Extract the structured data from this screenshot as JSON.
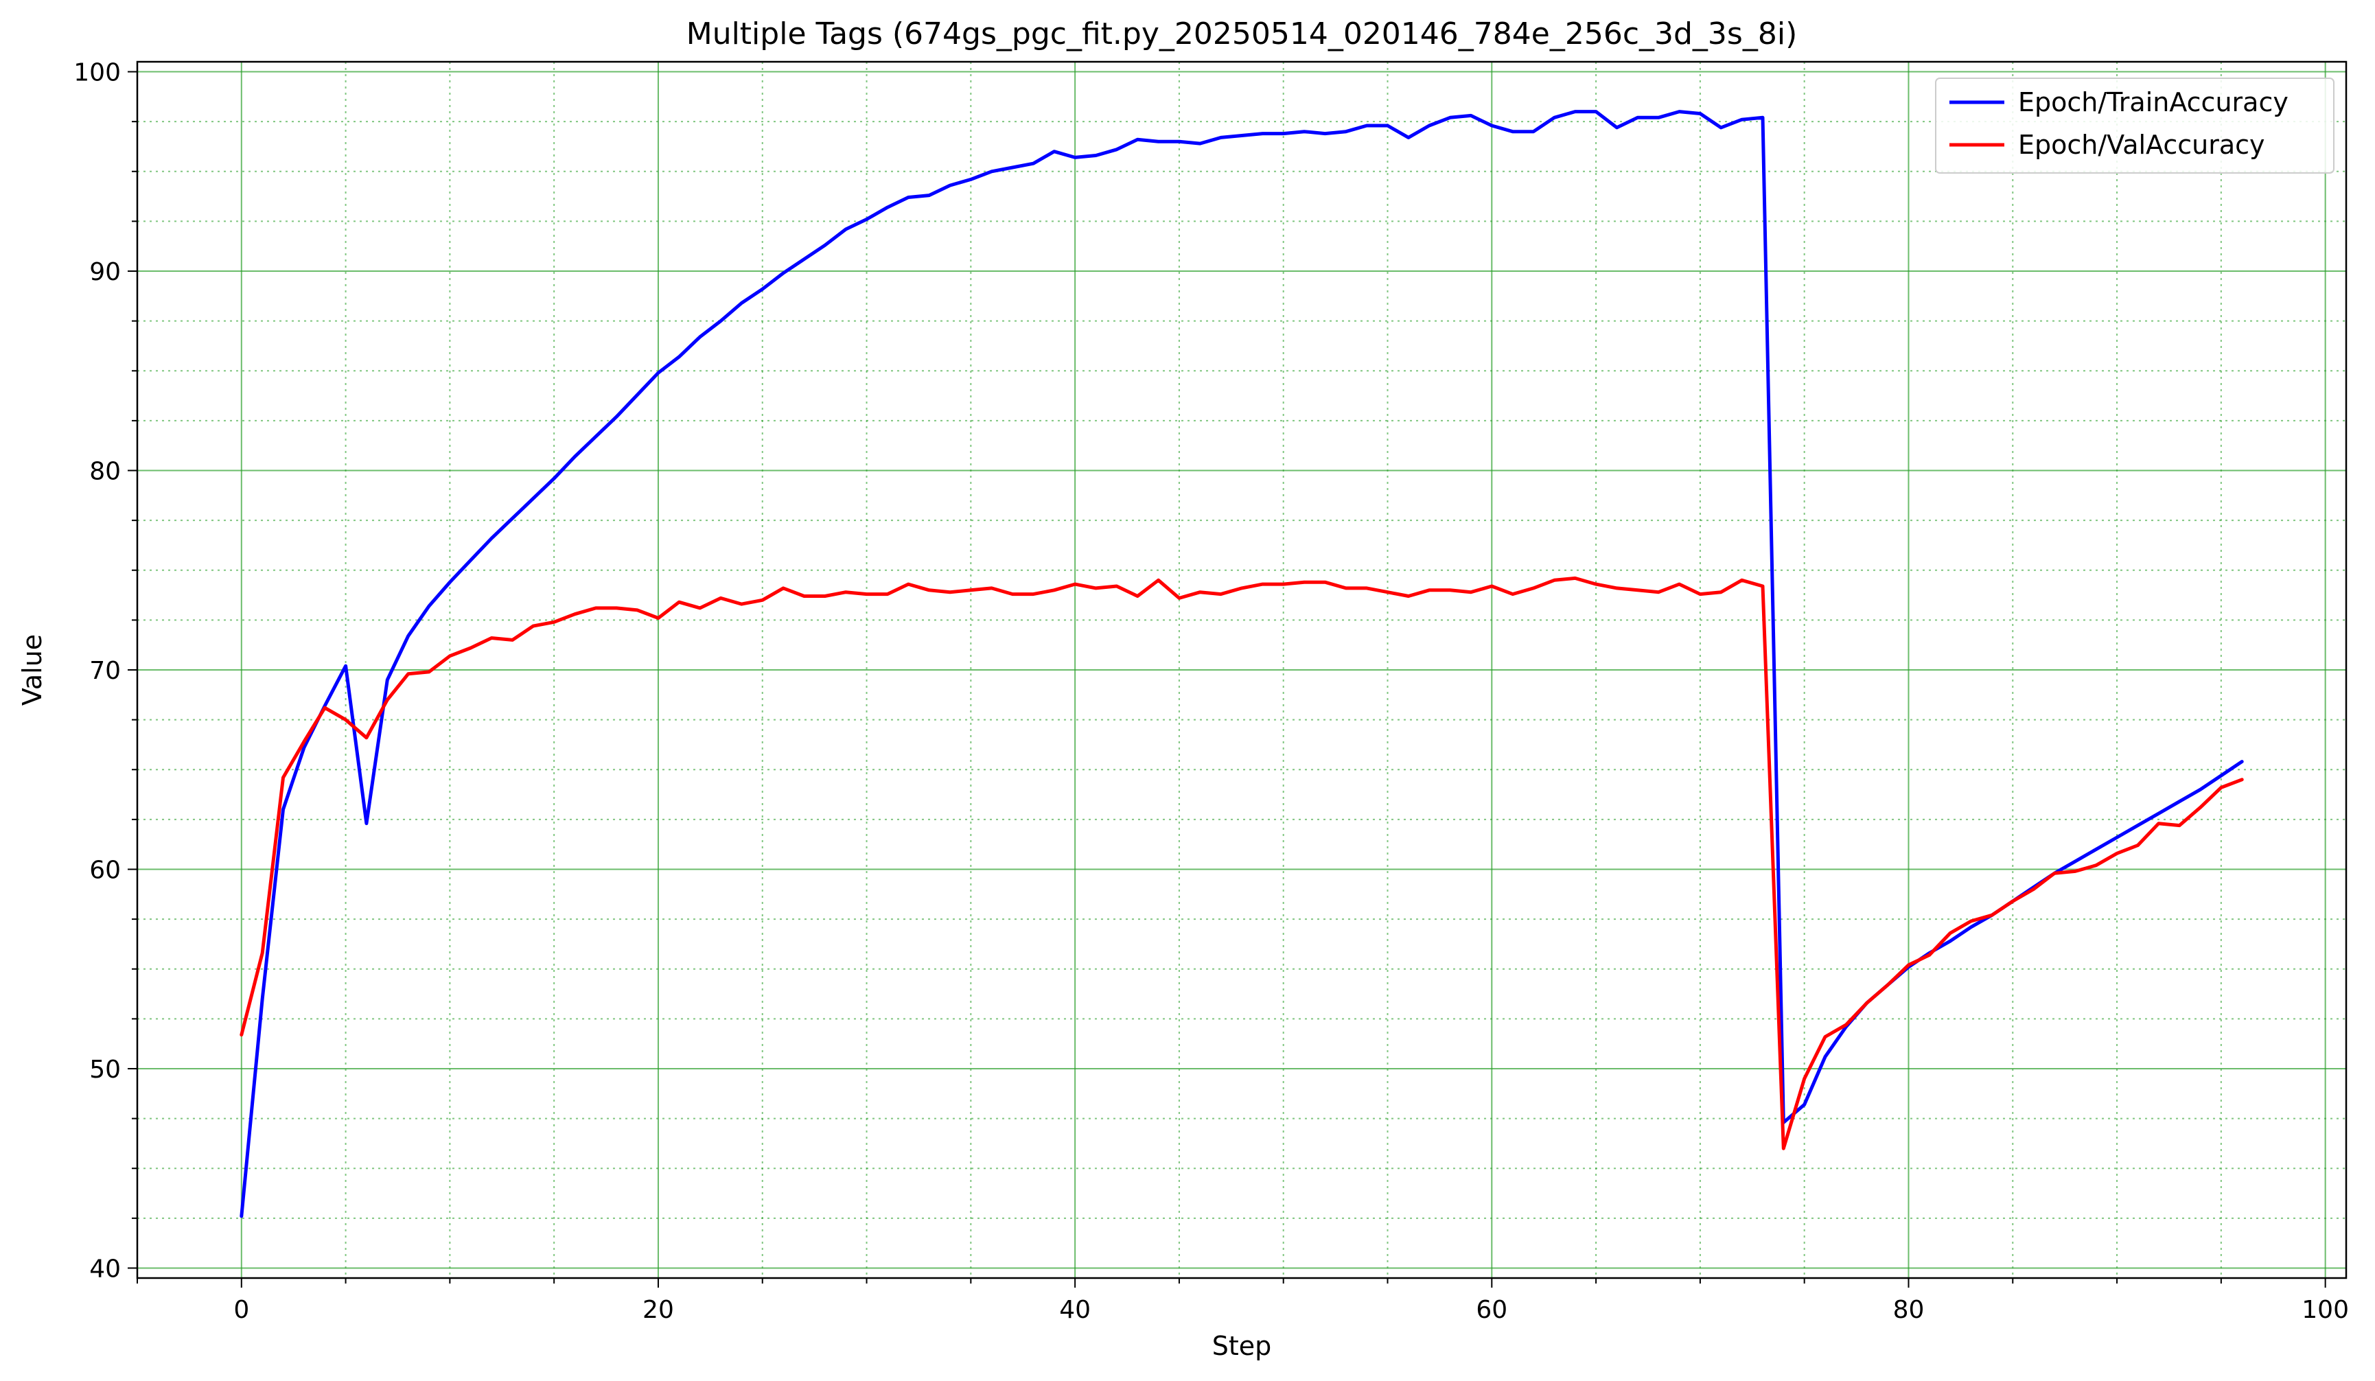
{
  "chart_data": {
    "type": "line",
    "title": "Multiple Tags (674gs_pgc_fit.py_20250514_020146_784e_256c_3d_3s_8i)",
    "xlabel": "Step",
    "ylabel": "Value",
    "xlim": [
      -5,
      101
    ],
    "ylim": [
      39.5,
      100.5
    ],
    "xticks": [
      0,
      20,
      40,
      60,
      80,
      100
    ],
    "yticks": [
      40,
      50,
      60,
      70,
      80,
      90,
      100
    ],
    "xminor_step": 5,
    "yminor_step": 2.5,
    "grid": {
      "major": true,
      "minor": true,
      "color": "#2ca02c"
    },
    "legend": {
      "position": "top-right"
    },
    "series": [
      {
        "name": "Epoch/TrainAccuracy",
        "color": "#0000ff",
        "x": [
          0,
          1,
          2,
          3,
          4,
          5,
          6,
          7,
          8,
          9,
          10,
          11,
          12,
          13,
          14,
          15,
          16,
          17,
          18,
          19,
          20,
          21,
          22,
          23,
          24,
          25,
          26,
          27,
          28,
          29,
          30,
          31,
          32,
          33,
          34,
          35,
          36,
          37,
          38,
          39,
          40,
          41,
          42,
          43,
          44,
          45,
          46,
          47,
          48,
          49,
          50,
          51,
          52,
          53,
          54,
          55,
          56,
          57,
          58,
          59,
          60,
          61,
          62,
          63,
          64,
          65,
          66,
          67,
          68,
          69,
          70,
          71,
          72,
          73,
          74,
          75,
          76,
          77,
          78,
          79,
          80,
          81,
          82,
          83,
          84,
          85,
          86,
          87,
          88,
          89,
          90,
          91,
          92,
          93,
          94,
          95,
          96
        ],
        "y": [
          42.6,
          53.5,
          63.0,
          66.1,
          68.2,
          70.2,
          62.3,
          69.5,
          71.7,
          73.2,
          74.4,
          75.5,
          76.6,
          77.6,
          78.6,
          79.6,
          80.7,
          81.7,
          82.7,
          83.8,
          84.9,
          85.7,
          86.7,
          87.5,
          88.4,
          89.1,
          89.9,
          90.6,
          91.3,
          92.1,
          92.6,
          93.2,
          93.7,
          93.8,
          94.3,
          94.6,
          95.0,
          95.2,
          95.4,
          96.0,
          95.7,
          95.8,
          96.1,
          96.6,
          96.5,
          96.5,
          96.4,
          96.7,
          96.8,
          96.9,
          96.9,
          97.0,
          96.9,
          97.0,
          97.3,
          97.3,
          96.7,
          97.3,
          97.7,
          97.8,
          97.3,
          97.0,
          97.0,
          97.7,
          98.0,
          98.0,
          97.2,
          97.7,
          97.7,
          98.0,
          97.9,
          97.2,
          97.6,
          97.7,
          47.3,
          48.2,
          50.6,
          52.1,
          53.3,
          54.2,
          55.1,
          55.8,
          56.4,
          57.1,
          57.7,
          58.4,
          59.1,
          59.8,
          60.4,
          61.0,
          61.6,
          62.2,
          62.8,
          63.4,
          64.0,
          64.7,
          65.4
        ]
      },
      {
        "name": "Epoch/ValAccuracy",
        "color": "#ff0000",
        "x": [
          0,
          1,
          2,
          3,
          4,
          5,
          6,
          7,
          8,
          9,
          10,
          11,
          12,
          13,
          14,
          15,
          16,
          17,
          18,
          19,
          20,
          21,
          22,
          23,
          24,
          25,
          26,
          27,
          28,
          29,
          30,
          31,
          32,
          33,
          34,
          35,
          36,
          37,
          38,
          39,
          40,
          41,
          42,
          43,
          44,
          45,
          46,
          47,
          48,
          49,
          50,
          51,
          52,
          53,
          54,
          55,
          56,
          57,
          58,
          59,
          60,
          61,
          62,
          63,
          64,
          65,
          66,
          67,
          68,
          69,
          70,
          71,
          72,
          73,
          74,
          75,
          76,
          77,
          78,
          79,
          80,
          81,
          82,
          83,
          84,
          85,
          86,
          87,
          88,
          89,
          90,
          91,
          92,
          93,
          94,
          95,
          96
        ],
        "y": [
          51.7,
          55.8,
          64.6,
          66.4,
          68.1,
          67.5,
          66.6,
          68.5,
          69.8,
          69.9,
          70.7,
          71.1,
          71.6,
          71.5,
          72.2,
          72.4,
          72.8,
          73.1,
          73.1,
          73.0,
          72.6,
          73.4,
          73.1,
          73.6,
          73.3,
          73.5,
          74.1,
          73.7,
          73.7,
          73.9,
          73.8,
          73.8,
          74.3,
          74.0,
          73.9,
          74.0,
          74.1,
          73.8,
          73.8,
          74.0,
          74.3,
          74.1,
          74.2,
          73.7,
          74.5,
          73.6,
          73.9,
          73.8,
          74.1,
          74.3,
          74.3,
          74.4,
          74.4,
          74.1,
          74.1,
          73.9,
          73.7,
          74.0,
          74.0,
          73.9,
          74.2,
          73.8,
          74.1,
          74.5,
          74.6,
          74.3,
          74.1,
          74.0,
          73.9,
          74.3,
          73.8,
          73.9,
          74.5,
          74.2,
          46.0,
          49.5,
          51.6,
          52.2,
          53.3,
          54.2,
          55.2,
          55.7,
          56.8,
          57.4,
          57.7,
          58.4,
          59.0,
          59.8,
          59.9,
          60.2,
          60.8,
          61.2,
          62.3,
          62.2,
          63.1,
          64.1,
          64.5
        ]
      }
    ]
  }
}
